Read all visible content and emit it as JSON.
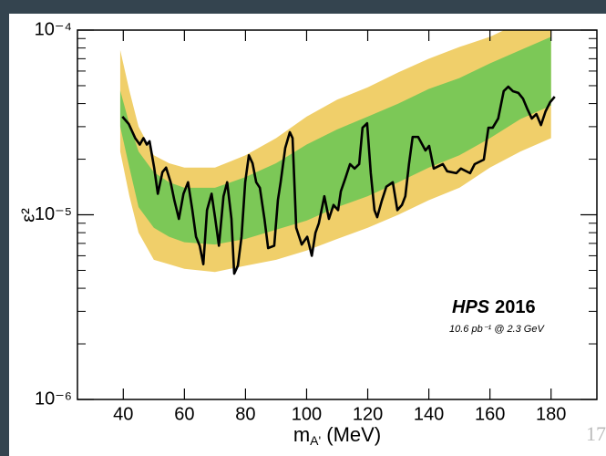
{
  "chart_data": {
    "type": "line",
    "y_label": "ε²",
    "x_label": {
      "main": "m",
      "sub": "A'",
      "rest": " (MeV)"
    },
    "annotations": [
      "HPS",
      "2016",
      "10.6 pb⁻¹ @ 2.3 GeV"
    ],
    "page_number": "17",
    "xlim": [
      25,
      195
    ],
    "xticks": [
      40,
      60,
      80,
      100,
      120,
      140,
      160,
      180
    ],
    "ylim": [
      1e-06,
      0.0001
    ],
    "yticks": [
      {
        "value": 1e-06,
        "label": "10⁻⁶"
      },
      {
        "value": 1e-05,
        "label": "10⁻⁵"
      },
      {
        "value": 0.0001,
        "label": "10⁻⁴"
      }
    ],
    "log_y": true,
    "bands": [
      {
        "color": "#f0cf6a",
        "x": [
          39,
          42,
          45,
          50,
          55,
          60,
          70,
          80,
          90,
          100,
          110,
          120,
          130,
          140,
          150,
          160,
          170,
          180
        ],
        "upper": [
          7.8e-05,
          4.7e-05,
          3e-05,
          2.1e-05,
          1.9e-05,
          1.8e-05,
          1.8e-05,
          2.1e-05,
          2.6e-05,
          3.4e-05,
          4.2e-05,
          4.9e-05,
          5.9e-05,
          7e-05,
          8.1e-05,
          9.2e-05,
          0.00011,
          0.00013
        ],
        "lower": [
          2.2e-05,
          1.26e-05,
          8e-06,
          5.7e-06,
          5.4e-06,
          5.1e-06,
          4.9e-06,
          5.3e-06,
          5.7e-06,
          6.4e-06,
          7.4e-06,
          8.5e-06,
          1e-05,
          1.2e-05,
          1.4e-05,
          1.8e-05,
          2.2e-05,
          2.6e-05
        ]
      },
      {
        "color": "#7cc857",
        "x": [
          39,
          42,
          45,
          50,
          55,
          60,
          70,
          80,
          90,
          100,
          110,
          120,
          130,
          140,
          150,
          160,
          170,
          180
        ],
        "upper": [
          4.7e-05,
          3.1e-05,
          2.2e-05,
          1.7e-05,
          1.5e-05,
          1.4e-05,
          1.4e-05,
          1.6e-05,
          1.9e-05,
          2.4e-05,
          2.9e-05,
          3.4e-05,
          4e-05,
          4.8e-05,
          5.5e-05,
          6.6e-05,
          7.8e-05,
          9.2e-05
        ],
        "lower": [
          3e-05,
          1.8e-05,
          1.1e-05,
          8.5e-06,
          7.6e-06,
          7.1e-06,
          6.9e-06,
          7.4e-06,
          8.3e-06,
          9.3e-06,
          1.1e-05,
          1.26e-05,
          1.5e-05,
          1.8e-05,
          2.1e-05,
          2.6e-05,
          3.3e-05,
          3.9e-05
        ]
      }
    ],
    "series": [
      {
        "color": "#000000",
        "x": [
          39.7,
          41.8,
          43.9,
          45.4,
          46.6,
          47.7,
          48.6,
          50.1,
          51.3,
          52.8,
          54.0,
          55.5,
          56.7,
          58.2,
          59.7,
          61.2,
          62.6,
          63.8,
          65.0,
          66.2,
          67.4,
          68.9,
          70.1,
          71.3,
          72.8,
          74.0,
          75.4,
          76.3,
          77.5,
          78.7,
          79.9,
          81.1,
          82.3,
          83.5,
          84.7,
          86.2,
          87.4,
          89.4,
          90.6,
          91.5,
          93.0,
          94.5,
          95.4,
          96.6,
          98.4,
          100.2,
          101.7,
          102.9,
          104.0,
          105.8,
          107.3,
          108.8,
          110.3,
          111.2,
          112.7,
          114.2,
          115.7,
          117.2,
          118.3,
          119.8,
          121.0,
          122.2,
          123.1,
          124.6,
          126.1,
          128.2,
          129.7,
          131.2,
          132.3,
          133.5,
          134.7,
          136.5,
          138.9,
          140.1,
          141.6,
          144.6,
          146.0,
          149.0,
          150.5,
          153.5,
          155.0,
          158.0,
          159.5,
          160.9,
          162.7,
          164.5,
          166.0,
          167.5,
          169.3,
          170.8,
          172.3,
          173.7,
          175.2,
          176.7,
          178.2,
          179.7,
          181.2
        ],
        "values": [
          3.4e-05,
          3.1e-05,
          2.6e-05,
          2.4e-05,
          2.6e-05,
          2.4e-05,
          2.5e-05,
          1.8e-05,
          1.3e-05,
          1.7e-05,
          1.8e-05,
          1.5e-05,
          1.2e-05,
          9.5e-06,
          1.3e-05,
          1.5e-05,
          1.06e-05,
          7.6e-06,
          6.8e-06,
          5.4e-06,
          1.06e-05,
          1.3e-05,
          9.5e-06,
          6.8e-06,
          1.26e-05,
          1.5e-05,
          9.5e-06,
          4.8e-06,
          5.3e-06,
          7.6e-06,
          1.5e-05,
          2.1e-05,
          1.9e-05,
          1.5e-05,
          1.4e-05,
          9.5e-06,
          6.6e-06,
          6.8e-06,
          1.2e-05,
          1.5e-05,
          2.3e-05,
          2.8e-05,
          2.6e-05,
          8.5e-06,
          6.9e-06,
          7.6e-06,
          6e-06,
          8e-06,
          9e-06,
          1.26e-05,
          9.5e-06,
          1.13e-05,
          1.06e-05,
          1.34e-05,
          1.58e-05,
          1.88e-05,
          1.78e-05,
          1.88e-05,
          2.96e-05,
          3.13e-05,
          1.68e-05,
          1.06e-05,
          9.7e-06,
          1.19e-05,
          1.42e-05,
          1.5e-05,
          1.06e-05,
          1.13e-05,
          1.26e-05,
          1.88e-05,
          2.64e-05,
          2.64e-05,
          2.23e-05,
          2.36e-05,
          1.78e-05,
          1.88e-05,
          1.72e-05,
          1.68e-05,
          1.78e-05,
          1.68e-05,
          1.88e-05,
          1.99e-05,
          2.96e-05,
          2.96e-05,
          3.32e-05,
          4.67e-05,
          4.94e-05,
          4.67e-05,
          4.57e-05,
          4.26e-05,
          3.72e-05,
          3.32e-05,
          3.51e-05,
          3.06e-05,
          3.63e-05,
          4.07e-05,
          4.36e-05
        ]
      }
    ]
  }
}
